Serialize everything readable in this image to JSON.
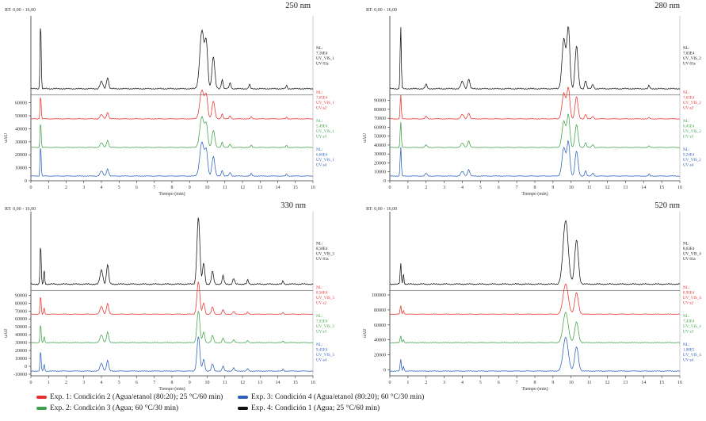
{
  "colors": {
    "exp1": "#e8312e",
    "exp2": "#3ea24a",
    "exp3": "#2c5fb8",
    "exp4": "#111111",
    "axis": "#333333"
  },
  "legend": [
    {
      "key": "exp1",
      "label": "Exp. 1: Condición 2 (Agua/etanol (80:20); 25 °C/60 min)"
    },
    {
      "key": "exp3",
      "label": "Exp. 3: Condición 4 (Agua/etanol (80:20); 60 °C/30 min)"
    },
    {
      "key": "exp2",
      "label": "Exp. 2: Condición 3 (Agua; 60 °C/30 min)"
    },
    {
      "key": "exp4",
      "label": "Exp. 4: Condición 1 (Agua; 25 °C/60 min)"
    }
  ],
  "chart_data": [
    {
      "type": "line",
      "title": "250 nm",
      "rt_label": "RT: 0,00 - 16,00",
      "xlabel": "Tiempo (min)",
      "ylabel": "uAU",
      "xlim": [
        0,
        16
      ],
      "x_ticks": [
        0,
        1,
        2,
        3,
        4,
        5,
        6,
        7,
        8,
        9,
        10,
        11,
        12,
        13,
        14,
        15,
        16
      ],
      "y_ticks": [
        0,
        10000,
        20000,
        30000,
        40000,
        50000,
        60000
      ],
      "ylim": [
        0,
        66000
      ],
      "trace_annotations": [
        [
          "NL:",
          "7,16E4",
          "UV_VIS_1",
          "UV 81a"
        ],
        [
          "NL:",
          "7,65E4",
          "UV_VIS_1",
          "UV a2"
        ],
        [
          "NL:",
          "5,49E4",
          "UV_VIS_1",
          "UV a3"
        ],
        [
          "NL:",
          "6,60E4",
          "UV_VIS_1",
          "UV a4"
        ]
      ],
      "series": [
        {
          "key": "exp4",
          "peaks": [
            [
              0.55,
              1.0,
              0.03
            ],
            [
              4.0,
              0.1,
              0.08
            ],
            [
              4.35,
              0.16,
              0.06
            ],
            [
              9.7,
              0.82,
              0.12
            ],
            [
              9.95,
              0.6,
              0.08
            ],
            [
              10.35,
              0.45,
              0.08
            ],
            [
              10.85,
              0.13,
              0.05
            ],
            [
              11.3,
              0.08,
              0.05
            ],
            [
              12.4,
              0.06,
              0.04
            ],
            [
              14.5,
              0.05,
              0.03
            ]
          ]
        },
        {
          "key": "exp1",
          "peaks": [
            [
              0.55,
              0.7,
              0.03
            ],
            [
              4.0,
              0.12,
              0.08
            ],
            [
              4.35,
              0.18,
              0.06
            ],
            [
              9.7,
              0.8,
              0.12
            ],
            [
              9.95,
              0.62,
              0.08
            ],
            [
              10.35,
              0.5,
              0.08
            ],
            [
              10.85,
              0.14,
              0.05
            ],
            [
              11.3,
              0.08,
              0.05
            ],
            [
              12.5,
              0.06,
              0.04
            ],
            [
              14.5,
              0.05,
              0.03
            ]
          ]
        },
        {
          "key": "exp2",
          "peaks": [
            [
              0.55,
              0.75,
              0.03
            ],
            [
              4.0,
              0.13,
              0.08
            ],
            [
              4.35,
              0.2,
              0.06
            ],
            [
              9.7,
              0.86,
              0.12
            ],
            [
              9.95,
              0.6,
              0.08
            ],
            [
              10.35,
              0.48,
              0.08
            ],
            [
              10.85,
              0.15,
              0.05
            ],
            [
              11.3,
              0.09,
              0.05
            ],
            [
              12.5,
              0.06,
              0.04
            ],
            [
              14.5,
              0.06,
              0.03
            ]
          ]
        },
        {
          "key": "exp3",
          "peaks": [
            [
              0.55,
              0.9,
              0.03
            ],
            [
              4.0,
              0.14,
              0.08
            ],
            [
              4.35,
              0.2,
              0.06
            ],
            [
              9.7,
              0.95,
              0.12
            ],
            [
              9.95,
              0.66,
              0.08
            ],
            [
              10.35,
              0.55,
              0.08
            ],
            [
              10.85,
              0.16,
              0.05
            ],
            [
              11.3,
              0.1,
              0.05
            ],
            [
              12.5,
              0.07,
              0.04
            ],
            [
              14.5,
              0.06,
              0.03
            ]
          ]
        }
      ]
    },
    {
      "type": "line",
      "title": "280 nm",
      "rt_label": "RT: 0,00 - 16,00",
      "xlabel": "Tiempo (min)",
      "ylabel": "uAU",
      "xlim": [
        0,
        16
      ],
      "x_ticks": [
        0,
        1,
        2,
        3,
        4,
        5,
        6,
        7,
        8,
        9,
        10,
        11,
        12,
        13,
        14,
        15,
        16
      ],
      "y_ticks": [
        0,
        10000,
        20000,
        30000,
        40000,
        50000,
        60000,
        70000,
        80000,
        90000
      ],
      "ylim": [
        0,
        96000
      ],
      "trace_annotations": [
        [
          "NL:",
          "7,63E4",
          "UV_VIS_2",
          "UV 81a"
        ],
        [
          "NL:",
          "7,65E4",
          "UV_VIS_2",
          "UV a2"
        ],
        [
          "NL:",
          "6,45E4",
          "UV_VIS_2",
          "UV a3"
        ],
        [
          "NL:",
          "9,24E4",
          "UV_VIS_2",
          "UV a4"
        ]
      ],
      "series": [
        {
          "key": "exp4",
          "peaks": [
            [
              0.6,
              0.9,
              0.03
            ],
            [
              2.0,
              0.06,
              0.05
            ],
            [
              4.0,
              0.1,
              0.08
            ],
            [
              4.35,
              0.14,
              0.06
            ],
            [
              9.6,
              0.7,
              0.1
            ],
            [
              9.85,
              0.85,
              0.08
            ],
            [
              10.3,
              0.6,
              0.08
            ],
            [
              10.8,
              0.12,
              0.05
            ],
            [
              11.2,
              0.06,
              0.05
            ],
            [
              14.3,
              0.05,
              0.03
            ]
          ]
        },
        {
          "key": "exp1",
          "peaks": [
            [
              0.6,
              0.7,
              0.03
            ],
            [
              2.0,
              0.07,
              0.05
            ],
            [
              4.0,
              0.12,
              0.08
            ],
            [
              4.35,
              0.16,
              0.06
            ],
            [
              9.6,
              0.72,
              0.1
            ],
            [
              9.85,
              0.86,
              0.08
            ],
            [
              10.3,
              0.62,
              0.08
            ],
            [
              10.8,
              0.13,
              0.05
            ],
            [
              11.2,
              0.07,
              0.05
            ],
            [
              14.3,
              0.05,
              0.03
            ]
          ]
        },
        {
          "key": "exp2",
          "peaks": [
            [
              0.6,
              0.75,
              0.03
            ],
            [
              2.0,
              0.07,
              0.05
            ],
            [
              4.0,
              0.12,
              0.08
            ],
            [
              4.35,
              0.18,
              0.06
            ],
            [
              9.6,
              0.74,
              0.1
            ],
            [
              9.85,
              0.9,
              0.08
            ],
            [
              10.3,
              0.64,
              0.08
            ],
            [
              10.8,
              0.14,
              0.05
            ],
            [
              11.2,
              0.08,
              0.05
            ],
            [
              14.3,
              0.05,
              0.03
            ]
          ]
        },
        {
          "key": "exp3",
          "peaks": [
            [
              0.6,
              0.85,
              0.03
            ],
            [
              2.0,
              0.08,
              0.05
            ],
            [
              4.0,
              0.13,
              0.08
            ],
            [
              4.35,
              0.18,
              0.06
            ],
            [
              9.6,
              0.8,
              0.1
            ],
            [
              9.85,
              0.95,
              0.08
            ],
            [
              10.3,
              0.7,
              0.08
            ],
            [
              10.8,
              0.15,
              0.05
            ],
            [
              11.2,
              0.08,
              0.05
            ],
            [
              14.3,
              0.06,
              0.03
            ]
          ]
        }
      ]
    },
    {
      "type": "line",
      "title": "330 nm",
      "rt_label": "RT: 0,00 - 16,00",
      "xlabel": "Tiempo (min)",
      "ylabel": "uAU",
      "xlim": [
        0,
        16
      ],
      "x_ticks": [
        0,
        1,
        2,
        3,
        4,
        5,
        6,
        7,
        8,
        9,
        10,
        11,
        12,
        13,
        14,
        15,
        16
      ],
      "y_ticks": [
        -10000,
        0,
        10000,
        20000,
        30000,
        40000,
        50000,
        60000,
        70000,
        80000,
        90000
      ],
      "ylim": [
        -12000,
        96000
      ],
      "trace_annotations": [
        [
          "NL:",
          "8,18E4",
          "UV_VIS_3",
          "UV 81a"
        ],
        [
          "NL:",
          "8,36E4",
          "UV_VIS_3",
          "UV a2"
        ],
        [
          "NL:",
          "7,03E4",
          "UV_VIS_3",
          "UV a3"
        ],
        [
          "NL:",
          "9,45E4",
          "UV_VIS_3",
          "UV a4"
        ]
      ],
      "series": [
        {
          "key": "exp4",
          "peaks": [
            [
              0.55,
              0.6,
              0.03
            ],
            [
              0.75,
              0.2,
              0.03
            ],
            [
              4.0,
              0.2,
              0.08
            ],
            [
              4.35,
              0.28,
              0.06
            ],
            [
              9.5,
              0.95,
              0.08
            ],
            [
              9.8,
              0.3,
              0.06
            ],
            [
              10.3,
              0.18,
              0.06
            ],
            [
              10.9,
              0.12,
              0.05
            ],
            [
              11.5,
              0.08,
              0.05
            ],
            [
              12.3,
              0.06,
              0.04
            ],
            [
              14.3,
              0.05,
              0.03
            ]
          ]
        },
        {
          "key": "exp1",
          "peaks": [
            [
              0.55,
              0.55,
              0.03
            ],
            [
              0.75,
              0.18,
              0.03
            ],
            [
              4.0,
              0.22,
              0.08
            ],
            [
              4.35,
              0.3,
              0.06
            ],
            [
              9.5,
              0.92,
              0.08
            ],
            [
              9.8,
              0.32,
              0.06
            ],
            [
              10.3,
              0.2,
              0.06
            ],
            [
              10.9,
              0.13,
              0.05
            ],
            [
              11.5,
              0.08,
              0.05
            ],
            [
              12.3,
              0.06,
              0.04
            ],
            [
              14.3,
              0.05,
              0.03
            ]
          ]
        },
        {
          "key": "exp2",
          "peaks": [
            [
              0.55,
              0.55,
              0.03
            ],
            [
              0.75,
              0.18,
              0.03
            ],
            [
              4.0,
              0.22,
              0.08
            ],
            [
              4.35,
              0.3,
              0.06
            ],
            [
              9.5,
              0.9,
              0.08
            ],
            [
              9.8,
              0.3,
              0.06
            ],
            [
              10.3,
              0.2,
              0.06
            ],
            [
              10.9,
              0.13,
              0.05
            ],
            [
              11.5,
              0.08,
              0.05
            ],
            [
              12.3,
              0.06,
              0.04
            ],
            [
              14.3,
              0.05,
              0.03
            ]
          ]
        },
        {
          "key": "exp3",
          "peaks": [
            [
              0.55,
              0.6,
              0.03
            ],
            [
              0.75,
              0.2,
              0.03
            ],
            [
              4.0,
              0.22,
              0.08
            ],
            [
              4.35,
              0.3,
              0.06
            ],
            [
              9.5,
              0.98,
              0.08
            ],
            [
              9.8,
              0.33,
              0.06
            ],
            [
              10.3,
              0.2,
              0.06
            ],
            [
              10.9,
              0.14,
              0.05
            ],
            [
              11.5,
              0.09,
              0.05
            ],
            [
              12.3,
              0.07,
              0.04
            ],
            [
              14.3,
              0.06,
              0.03
            ]
          ]
        }
      ]
    },
    {
      "type": "line",
      "title": "520 nm",
      "rt_label": "RT: 0,00 - 16,00",
      "xlabel": "Tiempo (min)",
      "ylabel": "uAU",
      "xlim": [
        0,
        16
      ],
      "x_ticks": [
        0,
        1,
        2,
        3,
        4,
        5,
        6,
        7,
        8,
        9,
        10,
        11,
        12,
        13,
        14,
        15,
        16
      ],
      "y_ticks": [
        0,
        20000,
        40000,
        60000,
        80000,
        100000
      ],
      "ylim": [
        -8000,
        106000
      ],
      "trace_annotations": [
        [
          "NL:",
          "8,63E4",
          "UV_VIS_4",
          "UV 81a"
        ],
        [
          "NL:",
          "8,91E4",
          "UV_VIS_4",
          "UV a2"
        ],
        [
          "NL:",
          "7,43E4",
          "UV_VIS_4",
          "UV a3"
        ],
        [
          "NL:",
          "1,08E5",
          "UV_VIS_4",
          "UV a4"
        ]
      ],
      "series": [
        {
          "key": "exp4",
          "peaks": [
            [
              0.6,
              0.3,
              0.03
            ],
            [
              0.75,
              0.15,
              0.03
            ],
            [
              9.7,
              0.9,
              0.14
            ],
            [
              10.3,
              0.62,
              0.1
            ]
          ]
        },
        {
          "key": "exp1",
          "peaks": [
            [
              0.6,
              0.25,
              0.03
            ],
            [
              0.75,
              0.12,
              0.03
            ],
            [
              9.7,
              0.85,
              0.14
            ],
            [
              10.3,
              0.6,
              0.1
            ]
          ]
        },
        {
          "key": "exp2",
          "peaks": [
            [
              0.6,
              0.2,
              0.03
            ],
            [
              0.75,
              0.1,
              0.03
            ],
            [
              9.7,
              0.85,
              0.14
            ],
            [
              10.3,
              0.58,
              0.1
            ]
          ]
        },
        {
          "key": "exp3",
          "peaks": [
            [
              0.6,
              0.35,
              0.03
            ],
            [
              0.75,
              0.15,
              0.03
            ],
            [
              9.7,
              0.95,
              0.14
            ],
            [
              10.3,
              0.68,
              0.1
            ]
          ]
        }
      ]
    }
  ]
}
